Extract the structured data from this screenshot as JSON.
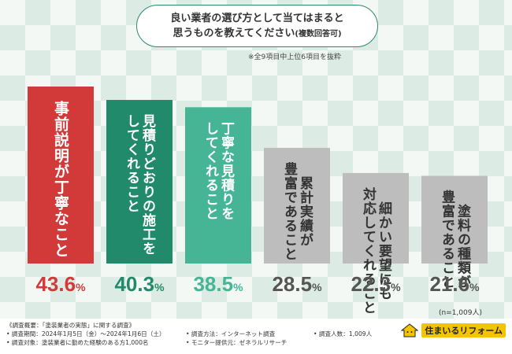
{
  "title": {
    "line1": "良い業者の選び方として当てはまると",
    "line2": "思うものを教えてください",
    "line2_note": "(複数回答可)"
  },
  "subnote": "※全9項目中上位6項目を抜粋",
  "n_label": "(n=1,009人)",
  "chart_data": {
    "type": "bar",
    "categories": [
      "事前説明が丁寧なこと",
      "見積りどおりの施工をしてくれること",
      "丁寧な見積りをしてくれること",
      "豊富であること 累計実績が",
      "細かい要望にも対応してくれること",
      "豊富であること 塗料の種類が"
    ],
    "category_lines": [
      [
        "事前説明が丁寧なこと"
      ],
      [
        "見積りどおりの施工を",
        "してくれること"
      ],
      [
        "丁寧な見積りを",
        "してくれること"
      ],
      [
        "累計実績が",
        "豊富であること"
      ],
      [
        "細かい要望にも",
        "対応してくれること"
      ],
      [
        "塗料の種類が",
        "豊富であること"
      ]
    ],
    "values": [
      43.6,
      40.3,
      38.5,
      28.5,
      22.3,
      21.6
    ],
    "value_labels": [
      "43.6",
      "40.3",
      "38.5",
      "28.5",
      "22.3",
      "21.6"
    ],
    "unit": "%",
    "colors": [
      "#d23a3a",
      "#218a6a",
      "#46b596",
      "#bdbdbd",
      "#bdbdbd",
      "#bdbdbd"
    ],
    "label_colors": [
      "#d23a3a",
      "#218a6a",
      "#46b596",
      "#555555",
      "#555555",
      "#555555"
    ],
    "ylim": [
      0,
      43.6
    ],
    "grid": false
  },
  "footer": {
    "col1": [
      "《調査概要：「塗装業者の実態」に関する調査》",
      "• 調査期間：2024年1月5日（金）～2024年1月6日（土）",
      "• 調査対象：塗装業者に勤めた経験のある方1,000名"
    ],
    "col2": [
      "• 調査方法：インターネット調査",
      "• モニター提供元：ゼネラルリサーチ"
    ],
    "col3": [
      "• 調査人数：1,009人"
    ],
    "logo_text": "住まいるリフォーム"
  }
}
